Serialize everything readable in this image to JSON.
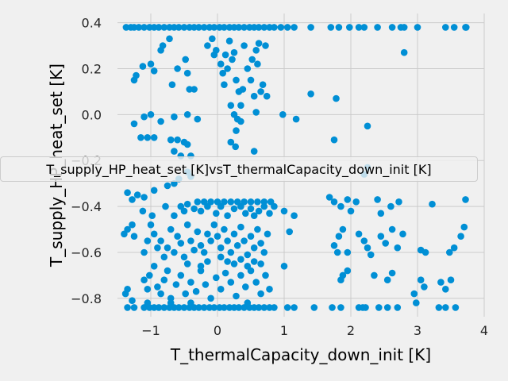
{
  "chart_data": {
    "type": "scatter",
    "xlabel": "T_thermalCapacity_down_init [K]",
    "ylabel": "T_supply_HP_heat_set [K]",
    "legend": "T_supply_HP_heat_set [K]vsT_thermalCapacity_down_init [K]",
    "legend_placement": "center",
    "grid": true,
    "color": "#008fd5",
    "xlim": [
      -1.5,
      4.0
    ],
    "ylim": [
      -0.88,
      0.44
    ],
    "xticks": [
      -1,
      0,
      1,
      2,
      3,
      4
    ],
    "yticks": [
      -0.8,
      -0.6,
      -0.4,
      -0.2,
      0.0,
      0.2,
      0.4
    ],
    "xtick_labels": [
      "−1",
      "0",
      "1",
      "2",
      "3",
      "4"
    ],
    "ytick_labels": [
      "−0.8",
      "−0.6",
      "−0.4",
      "−0.2",
      "0.0",
      "0.2",
      "0.4"
    ],
    "points": [
      [
        -1.37,
        0.38
      ],
      [
        -1.3,
        0.38
      ],
      [
        -1.25,
        0.38
      ],
      [
        -1.18,
        0.38
      ],
      [
        -1.1,
        0.38
      ],
      [
        -1.02,
        0.38
      ],
      [
        -0.95,
        0.38
      ],
      [
        -0.88,
        0.38
      ],
      [
        -0.8,
        0.38
      ],
      [
        -0.72,
        0.38
      ],
      [
        -0.65,
        0.38
      ],
      [
        -0.58,
        0.38
      ],
      [
        -0.5,
        0.38
      ],
      [
        -0.42,
        0.38
      ],
      [
        -0.35,
        0.38
      ],
      [
        -0.28,
        0.38
      ],
      [
        -0.2,
        0.38
      ],
      [
        -0.12,
        0.38
      ],
      [
        -0.05,
        0.38
      ],
      [
        0.03,
        0.38
      ],
      [
        0.1,
        0.38
      ],
      [
        0.18,
        0.38
      ],
      [
        0.25,
        0.38
      ],
      [
        0.32,
        0.38
      ],
      [
        0.4,
        0.38
      ],
      [
        0.48,
        0.38
      ],
      [
        0.55,
        0.38
      ],
      [
        0.62,
        0.38
      ],
      [
        0.7,
        0.38
      ],
      [
        0.78,
        0.38
      ],
      [
        0.85,
        0.38
      ],
      [
        0.95,
        0.38
      ],
      [
        1.05,
        0.38
      ],
      [
        1.15,
        0.38
      ],
      [
        1.4,
        0.38
      ],
      [
        1.7,
        0.38
      ],
      [
        1.82,
        0.38
      ],
      [
        1.98,
        0.38
      ],
      [
        2.12,
        0.38
      ],
      [
        2.2,
        0.38
      ],
      [
        2.4,
        0.38
      ],
      [
        2.62,
        0.38
      ],
      [
        2.75,
        0.38
      ],
      [
        2.8,
        0.38
      ],
      [
        3.0,
        0.38
      ],
      [
        3.42,
        0.38
      ],
      [
        3.55,
        0.38
      ],
      [
        3.72,
        0.38
      ],
      [
        3.73,
        0.38
      ],
      [
        -1.25,
        0.15
      ],
      [
        -1.22,
        0.17
      ],
      [
        -1.12,
        0.21
      ],
      [
        -1.0,
        0.22
      ],
      [
        -0.95,
        0.19
      ],
      [
        -0.85,
        0.28
      ],
      [
        -0.82,
        0.3
      ],
      [
        -0.72,
        0.33
      ],
      [
        -0.68,
        0.13
      ],
      [
        -0.6,
        0.2
      ],
      [
        -0.48,
        0.24
      ],
      [
        -0.45,
        0.18
      ],
      [
        -0.42,
        0.11
      ],
      [
        -0.35,
        0.11
      ],
      [
        -0.15,
        0.3
      ],
      [
        -0.08,
        0.33
      ],
      [
        -0.05,
        0.26
      ],
      [
        -0.02,
        0.28
      ],
      [
        0.05,
        0.22
      ],
      [
        0.08,
        0.18
      ],
      [
        0.1,
        0.13
      ],
      [
        0.12,
        0.26
      ],
      [
        0.15,
        0.2
      ],
      [
        0.18,
        0.32
      ],
      [
        0.22,
        0.24
      ],
      [
        0.25,
        0.27
      ],
      [
        0.28,
        0.15
      ],
      [
        0.32,
        0.1
      ],
      [
        0.35,
        0.04
      ],
      [
        0.38,
        0.11
      ],
      [
        0.4,
        0.3
      ],
      [
        0.45,
        0.2
      ],
      [
        0.5,
        0.15
      ],
      [
        0.52,
        0.24
      ],
      [
        0.55,
        0.08
      ],
      [
        0.58,
        0.28
      ],
      [
        0.6,
        0.22
      ],
      [
        0.62,
        0.31
      ],
      [
        0.65,
        0.1
      ],
      [
        0.68,
        0.13
      ],
      [
        0.72,
        0.3
      ],
      [
        0.74,
        0.08
      ],
      [
        1.4,
        0.09
      ],
      [
        1.78,
        0.07
      ],
      [
        2.8,
        0.27
      ],
      [
        -1.25,
        -0.04
      ],
      [
        -1.1,
        -0.01
      ],
      [
        -1.0,
        0.0
      ],
      [
        -0.85,
        -0.03
      ],
      [
        -0.65,
        -0.01
      ],
      [
        -0.45,
        0.0
      ],
      [
        -0.3,
        -0.02
      ],
      [
        0.2,
        0.04
      ],
      [
        0.25,
        0.0
      ],
      [
        0.3,
        -0.02
      ],
      [
        0.28,
        -0.07
      ],
      [
        0.35,
        -0.03
      ],
      [
        0.58,
        0.01
      ],
      [
        0.98,
        0.0
      ],
      [
        1.18,
        -0.02
      ],
      [
        2.25,
        -0.05
      ],
      [
        -1.15,
        -0.1
      ],
      [
        -1.05,
        -0.1
      ],
      [
        -0.95,
        -0.1
      ],
      [
        -0.7,
        -0.11
      ],
      [
        -0.6,
        -0.11
      ],
      [
        -0.5,
        -0.12
      ],
      [
        -0.45,
        -0.13
      ],
      [
        -0.65,
        -0.16
      ],
      [
        -0.55,
        -0.18
      ],
      [
        -0.4,
        -0.18
      ],
      [
        0.2,
        -0.12
      ],
      [
        0.27,
        -0.14
      ],
      [
        0.55,
        -0.16
      ],
      [
        1.75,
        -0.11
      ],
      [
        2.2,
        -0.26
      ],
      [
        2.25,
        -0.23
      ],
      [
        -1.35,
        -0.34
      ],
      [
        -1.28,
        -0.37
      ],
      [
        -1.2,
        -0.35
      ],
      [
        -1.1,
        -0.36
      ],
      [
        -0.95,
        -0.33
      ],
      [
        -0.75,
        -0.31
      ],
      [
        -0.65,
        -0.3
      ],
      [
        -0.58,
        -0.28
      ],
      [
        -0.45,
        -0.25
      ],
      [
        -0.4,
        -0.27
      ],
      [
        -0.3,
        -0.38
      ],
      [
        -0.2,
        -0.38
      ],
      [
        -0.1,
        -0.38
      ],
      [
        0.0,
        -0.38
      ],
      [
        0.1,
        -0.38
      ],
      [
        0.2,
        -0.38
      ],
      [
        0.3,
        -0.38
      ],
      [
        0.4,
        -0.38
      ],
      [
        0.5,
        -0.38
      ],
      [
        0.6,
        -0.38
      ],
      [
        0.7,
        -0.38
      ],
      [
        0.8,
        -0.38
      ],
      [
        -0.55,
        -0.4
      ],
      [
        -0.5,
        -0.42
      ],
      [
        -0.45,
        -0.39
      ],
      [
        -0.35,
        -0.41
      ],
      [
        -0.25,
        -0.42
      ],
      [
        -0.15,
        -0.4
      ],
      [
        -0.02,
        -0.43
      ],
      [
        0.05,
        -0.4
      ],
      [
        0.15,
        -0.44
      ],
      [
        0.25,
        -0.41
      ],
      [
        0.35,
        -0.4
      ],
      [
        0.42,
        -0.43
      ],
      [
        0.5,
        -0.41
      ],
      [
        0.55,
        -0.44
      ],
      [
        0.62,
        -0.42
      ],
      [
        0.7,
        -0.4
      ],
      [
        0.78,
        -0.43
      ],
      [
        0.85,
        -0.4
      ],
      [
        1.0,
        -0.42
      ],
      [
        1.15,
        -0.44
      ],
      [
        1.68,
        -0.36
      ],
      [
        1.75,
        -0.38
      ],
      [
        1.85,
        -0.4
      ],
      [
        1.95,
        -0.37
      ],
      [
        2.0,
        -0.42
      ],
      [
        2.08,
        -0.38
      ],
      [
        2.4,
        -0.37
      ],
      [
        2.45,
        -0.43
      ],
      [
        2.6,
        -0.4
      ],
      [
        2.72,
        -0.38
      ],
      [
        3.22,
        -0.39
      ],
      [
        3.72,
        -0.37
      ],
      [
        -0.78,
        -0.4
      ],
      [
        -0.65,
        -0.44
      ],
      [
        -0.98,
        -0.44
      ],
      [
        -1.12,
        -0.42
      ],
      [
        -1.4,
        -0.52
      ],
      [
        -1.35,
        -0.5
      ],
      [
        -1.28,
        -0.48
      ],
      [
        -1.25,
        -0.53
      ],
      [
        -1.1,
        -0.6
      ],
      [
        -1.05,
        -0.55
      ],
      [
        -1.0,
        -0.48
      ],
      [
        -0.95,
        -0.52
      ],
      [
        -0.9,
        -0.58
      ],
      [
        -0.85,
        -0.55
      ],
      [
        -0.8,
        -0.62
      ],
      [
        -0.75,
        -0.58
      ],
      [
        -0.7,
        -0.5
      ],
      [
        -0.65,
        -0.6
      ],
      [
        -0.6,
        -0.53
      ],
      [
        -0.55,
        -0.56
      ],
      [
        -0.5,
        -0.62
      ],
      [
        -0.45,
        -0.48
      ],
      [
        -0.4,
        -0.55
      ],
      [
        -0.35,
        -0.59
      ],
      [
        -0.3,
        -0.51
      ],
      [
        -0.25,
        -0.57
      ],
      [
        -0.2,
        -0.6
      ],
      [
        -0.15,
        -0.52
      ],
      [
        -0.1,
        -0.55
      ],
      [
        -0.05,
        -0.48
      ],
      [
        0.0,
        -0.53
      ],
      [
        0.05,
        -0.58
      ],
      [
        0.1,
        -0.5
      ],
      [
        0.15,
        -0.55
      ],
      [
        0.2,
        -0.6
      ],
      [
        0.25,
        -0.52
      ],
      [
        0.3,
        -0.57
      ],
      [
        0.35,
        -0.49
      ],
      [
        0.4,
        -0.55
      ],
      [
        0.45,
        -0.61
      ],
      [
        0.5,
        -0.53
      ],
      [
        0.55,
        -0.58
      ],
      [
        0.6,
        -0.5
      ],
      [
        0.65,
        -0.56
      ],
      [
        0.7,
        -0.6
      ],
      [
        0.75,
        -0.52
      ],
      [
        1.08,
        -0.51
      ],
      [
        1.75,
        -0.57
      ],
      [
        1.8,
        -0.6
      ],
      [
        1.82,
        -0.53
      ],
      [
        1.88,
        -0.5
      ],
      [
        1.95,
        -0.6
      ],
      [
        2.12,
        -0.52
      ],
      [
        2.2,
        -0.55
      ],
      [
        2.25,
        -0.58
      ],
      [
        2.3,
        -0.61
      ],
      [
        2.45,
        -0.53
      ],
      [
        2.52,
        -0.56
      ],
      [
        2.62,
        -0.5
      ],
      [
        2.7,
        -0.58
      ],
      [
        2.78,
        -0.52
      ],
      [
        3.05,
        -0.59
      ],
      [
        3.12,
        -0.6
      ],
      [
        3.48,
        -0.6
      ],
      [
        3.55,
        -0.58
      ],
      [
        3.65,
        -0.53
      ],
      [
        3.7,
        -0.49
      ],
      [
        -1.38,
        -0.78
      ],
      [
        -1.35,
        -0.76
      ],
      [
        -1.28,
        -0.81
      ],
      [
        -1.1,
        -0.72
      ],
      [
        -1.05,
        -0.76
      ],
      [
        -1.02,
        -0.7
      ],
      [
        -0.95,
        -0.66
      ],
      [
        -0.9,
        -0.75
      ],
      [
        -0.85,
        -0.78
      ],
      [
        -0.8,
        -0.72
      ],
      [
        -0.75,
        -0.68
      ],
      [
        -0.7,
        -0.8
      ],
      [
        -0.62,
        -0.74
      ],
      [
        -0.55,
        -0.7
      ],
      [
        -0.48,
        -0.78
      ],
      [
        -0.4,
        -0.73
      ],
      [
        -0.32,
        -0.77
      ],
      [
        -0.25,
        -0.68
      ],
      [
        -0.18,
        -0.74
      ],
      [
        -0.1,
        -0.8
      ],
      [
        -0.02,
        -0.71
      ],
      [
        0.05,
        -0.76
      ],
      [
        0.12,
        -0.69
      ],
      [
        0.2,
        -0.73
      ],
      [
        0.28,
        -0.79
      ],
      [
        0.35,
        -0.7
      ],
      [
        0.42,
        -0.75
      ],
      [
        0.5,
        -0.68
      ],
      [
        0.58,
        -0.73
      ],
      [
        0.65,
        -0.78
      ],
      [
        0.72,
        -0.7
      ],
      [
        0.78,
        -0.76
      ],
      [
        1.0,
        -0.66
      ],
      [
        1.85,
        -0.72
      ],
      [
        1.88,
        -0.7
      ],
      [
        1.95,
        -0.68
      ],
      [
        2.35,
        -0.7
      ],
      [
        2.55,
        -0.72
      ],
      [
        2.62,
        -0.69
      ],
      [
        2.95,
        -0.78
      ],
      [
        3.05,
        -0.72
      ],
      [
        3.1,
        -0.75
      ],
      [
        3.35,
        -0.73
      ],
      [
        3.42,
        -0.76
      ],
      [
        3.5,
        -0.72
      ],
      [
        0.05,
        -0.62
      ],
      [
        0.15,
        -0.64
      ],
      [
        0.25,
        -0.65
      ],
      [
        0.35,
        -0.63
      ],
      [
        0.45,
        -0.66
      ],
      [
        0.55,
        -0.64
      ],
      [
        0.65,
        -0.65
      ],
      [
        -0.15,
        -0.64
      ],
      [
        -0.25,
        -0.66
      ],
      [
        -0.45,
        -0.65
      ],
      [
        -1.35,
        -0.84
      ],
      [
        -1.25,
        -0.84
      ],
      [
        -1.1,
        -0.84
      ],
      [
        -1.02,
        -0.84
      ],
      [
        -0.95,
        -0.84
      ],
      [
        -0.88,
        -0.84
      ],
      [
        -0.8,
        -0.84
      ],
      [
        -0.72,
        -0.84
      ],
      [
        -0.65,
        -0.84
      ],
      [
        -0.58,
        -0.84
      ],
      [
        -0.5,
        -0.84
      ],
      [
        -0.42,
        -0.84
      ],
      [
        -0.35,
        -0.84
      ],
      [
        -0.28,
        -0.84
      ],
      [
        -0.2,
        -0.84
      ],
      [
        -0.12,
        -0.84
      ],
      [
        -0.05,
        -0.84
      ],
      [
        0.03,
        -0.84
      ],
      [
        0.1,
        -0.84
      ],
      [
        0.18,
        -0.84
      ],
      [
        0.25,
        -0.84
      ],
      [
        0.32,
        -0.84
      ],
      [
        0.4,
        -0.84
      ],
      [
        0.48,
        -0.84
      ],
      [
        0.55,
        -0.84
      ],
      [
        0.62,
        -0.84
      ],
      [
        0.7,
        -0.84
      ],
      [
        0.78,
        -0.84
      ],
      [
        0.85,
        -0.84
      ],
      [
        1.05,
        -0.84
      ],
      [
        1.15,
        -0.84
      ],
      [
        1.45,
        -0.84
      ],
      [
        1.72,
        -0.84
      ],
      [
        1.85,
        -0.84
      ],
      [
        2.12,
        -0.84
      ],
      [
        2.18,
        -0.84
      ],
      [
        2.22,
        -0.84
      ],
      [
        2.42,
        -0.84
      ],
      [
        2.55,
        -0.84
      ],
      [
        2.7,
        -0.84
      ],
      [
        2.98,
        -0.82
      ],
      [
        3.32,
        -0.84
      ],
      [
        3.42,
        -0.84
      ],
      [
        3.57,
        -0.84
      ],
      [
        -1.05,
        -0.82
      ],
      [
        -0.7,
        -0.82
      ],
      [
        -0.4,
        -0.82
      ],
      [
        0.45,
        -0.82
      ]
    ]
  }
}
